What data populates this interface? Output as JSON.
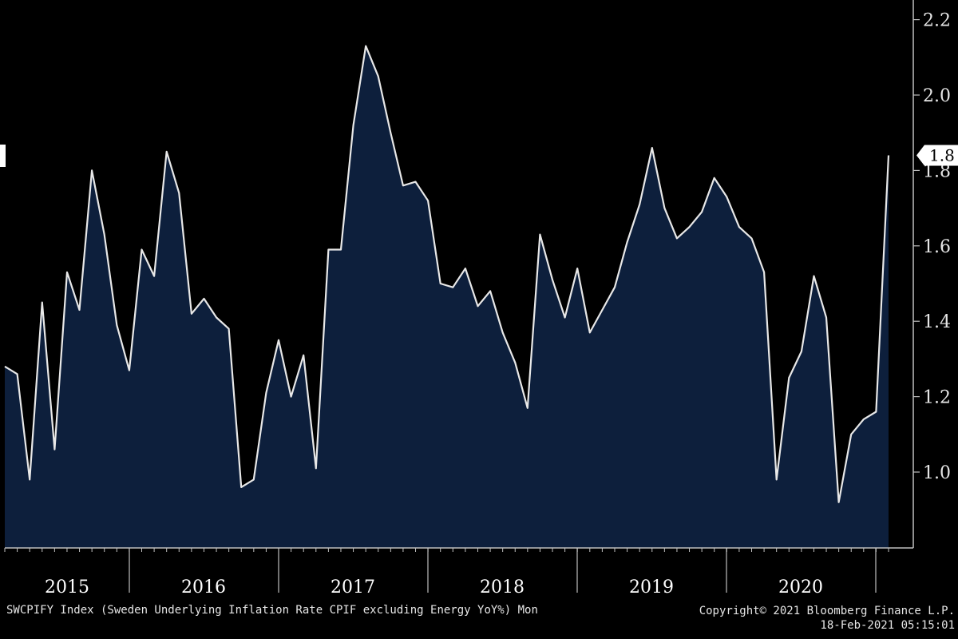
{
  "chart_data": {
    "type": "area",
    "title": "SWCPIFY Index (Sweden Underlying Inflation Rate CPIF excluding Energy YoY%) Mon",
    "series_name": "SWCPIFY Index",
    "y_ticks": [
      "1.0",
      "1.2",
      "1.4",
      "1.6",
      "1.8",
      "2.0",
      "2.2"
    ],
    "x_labels": [
      "2015",
      "2016",
      "2017",
      "2018",
      "2019",
      "2020"
    ],
    "ylim": [
      0.8,
      2.25
    ],
    "last_value_label": "1.8",
    "values": [
      1.28,
      1.26,
      0.98,
      1.45,
      1.06,
      1.53,
      1.43,
      1.8,
      1.63,
      1.39,
      1.27,
      1.59,
      1.52,
      1.85,
      1.74,
      1.42,
      1.46,
      1.41,
      1.38,
      0.96,
      0.98,
      1.21,
      1.35,
      1.2,
      1.31,
      1.01,
      1.59,
      1.59,
      1.92,
      2.13,
      2.05,
      1.9,
      1.76,
      1.77,
      1.72,
      1.5,
      1.49,
      1.54,
      1.44,
      1.48,
      1.37,
      1.29,
      1.17,
      1.63,
      1.51,
      1.41,
      1.54,
      1.37,
      1.43,
      1.49,
      1.61,
      1.71,
      1.86,
      1.7,
      1.62,
      1.65,
      1.69,
      1.78,
      1.73,
      1.65,
      1.62,
      1.53,
      0.98,
      1.25,
      1.32,
      1.52,
      1.41,
      0.92,
      1.1,
      1.14,
      1.16,
      1.84
    ]
  },
  "footer": {
    "source": "SWCPIFY Index (Sweden Underlying Inflation Rate CPIF excluding Energy YoY%) Mon",
    "copyright": "Copyright© 2021 Bloomberg Finance L.P.",
    "date": "18-Feb-2021 05:15:01"
  },
  "colors": {
    "background": "#000000",
    "area_fill": "#0d1f3c",
    "line": "#e8e8e8",
    "axis": "#bfbfbf"
  }
}
